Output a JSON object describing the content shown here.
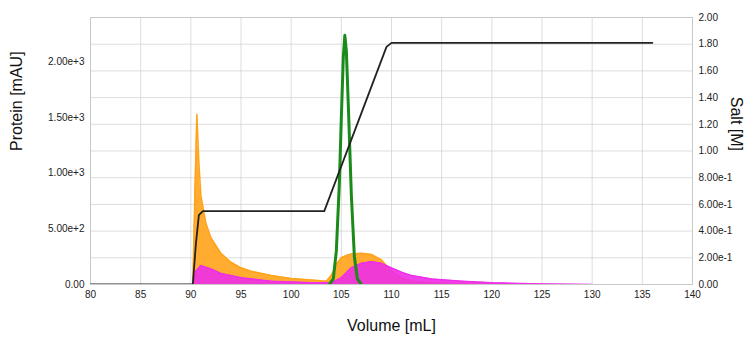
{
  "chart_data": {
    "type": "line",
    "x_label": "Volume [mL]",
    "y_label": "Protein [mAU]",
    "y2_label": "Salt [M]",
    "grid": true,
    "xlim": [
      80,
      140
    ],
    "xticks": [
      80,
      85,
      90,
      95,
      100,
      105,
      110,
      115,
      120,
      125,
      130,
      135,
      140
    ],
    "ylim": [
      0,
      2400
    ],
    "yticks": [
      {
        "value": 0,
        "label": "0.00"
      },
      {
        "value": 500,
        "label": "5.00e+2"
      },
      {
        "value": 1000,
        "label": "1.00e+3"
      },
      {
        "value": 1500,
        "label": "1.50e+3"
      },
      {
        "value": 2000,
        "label": "2.00e+3"
      }
    ],
    "y2lim": [
      0,
      2
    ],
    "y2ticks": [
      {
        "value": 0,
        "label": "0.00"
      },
      {
        "value": 0.2,
        "label": "2.00e-1"
      },
      {
        "value": 0.4,
        "label": "4.00e-1"
      },
      {
        "value": 0.6,
        "label": "6.00e-1"
      },
      {
        "value": 0.8,
        "label": "8.00e-1"
      },
      {
        "value": 1,
        "label": "1.00"
      },
      {
        "value": 1.2,
        "label": "1.20"
      },
      {
        "value": 1.4,
        "label": "1.40"
      },
      {
        "value": 1.6,
        "label": "1.60"
      },
      {
        "value": 1.8,
        "label": "1.80"
      },
      {
        "value": 2,
        "label": "2.00"
      }
    ],
    "series": [
      {
        "type": "area",
        "color": "#ffa31a",
        "x": [
          90.2,
          90.4,
          90.6,
          90.8,
          91.0,
          91.5,
          92,
          93,
          94,
          95,
          96,
          98,
          100,
          102,
          103.5,
          104,
          104.5,
          105,
          105.5,
          106,
          107,
          108,
          109,
          110,
          111,
          112,
          114,
          118,
          125
        ],
        "values": [
          0,
          800,
          1530,
          1100,
          800,
          550,
          420,
          280,
          200,
          150,
          120,
          80,
          55,
          40,
          30,
          80,
          180,
          240,
          260,
          275,
          280,
          270,
          220,
          120,
          60,
          30,
          15,
          5,
          0
        ]
      },
      {
        "type": "area",
        "color": "#ee2ee8",
        "x": [
          90.2,
          90.5,
          91,
          92,
          93,
          95,
          98,
          102,
          104,
          105,
          106,
          107,
          108,
          109,
          110,
          111,
          112,
          114,
          117,
          120,
          125,
          130
        ],
        "values": [
          0,
          120,
          170,
          140,
          100,
          60,
          30,
          15,
          15,
          60,
          150,
          190,
          205,
          190,
          150,
          110,
          80,
          50,
          30,
          15,
          5,
          0
        ]
      },
      {
        "type": "line",
        "color": "#1a8a1a",
        "x": [
          103.8,
          104.2,
          104.5,
          104.8,
          105.0,
          105.2,
          105.35,
          105.5,
          105.7,
          106.0,
          106.3,
          106.6,
          107.0
        ],
        "values": [
          0,
          50,
          300,
          900,
          1500,
          2050,
          2240,
          2100,
          1600,
          800,
          250,
          50,
          0
        ]
      },
      {
        "type": "line",
        "color": "#222222",
        "axis": "y2",
        "x": [
          80,
          90.2,
          90.5,
          90.8,
          91.2,
          103.3,
          109.5,
          110.0,
          136
        ],
        "values": [
          0,
          0,
          0.3,
          0.52,
          0.55,
          0.55,
          1.78,
          1.81,
          1.81
        ]
      }
    ]
  }
}
